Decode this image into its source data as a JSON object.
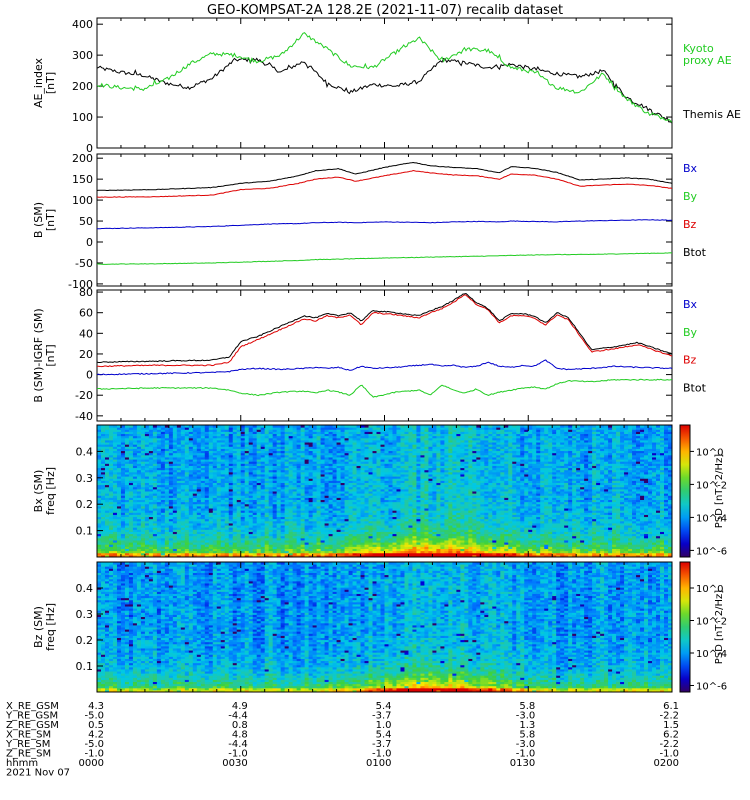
{
  "title": "GEO-KOMPSAT-2A 128.2E (2021-11-07) recalib dataset",
  "colors": {
    "black": "#000000",
    "red": "#dd0000",
    "blue": "#0000cc",
    "green": "#22cc22"
  },
  "chart_data": [
    {
      "id": "ae",
      "type": "line",
      "ylabel": [
        "AE_index",
        "[nT]"
      ],
      "ylim": [
        0,
        420
      ],
      "yticks": [
        0,
        100,
        200,
        300,
        400
      ],
      "x": [
        0.0,
        0.04,
        0.08,
        0.12,
        0.16,
        0.2,
        0.24,
        0.28,
        0.32,
        0.36,
        0.4,
        0.44,
        0.48,
        0.52,
        0.56,
        0.6,
        0.64,
        0.68,
        0.72,
        0.76,
        0.8,
        0.84,
        0.88,
        0.92,
        0.96,
        1.0
      ],
      "series": [
        {
          "name": "Themis AE",
          "color": "#000000",
          "values": [
            260,
            245,
            235,
            210,
            195,
            225,
            285,
            285,
            245,
            280,
            210,
            180,
            205,
            200,
            215,
            285,
            275,
            260,
            270,
            255,
            240,
            230,
            250,
            165,
            125,
            85
          ]
        },
        {
          "name": "Kyoto proxy AE",
          "color": "#22cc22",
          "values": [
            205,
            195,
            190,
            220,
            270,
            305,
            300,
            280,
            300,
            370,
            320,
            265,
            260,
            310,
            355,
            280,
            320,
            315,
            260,
            245,
            195,
            180,
            240,
            160,
            110,
            90
          ]
        }
      ],
      "legend_lines": [
        {
          "text": "Kyoto",
          "color": "#22cc22"
        },
        {
          "text": "proxy AE",
          "color": "#22cc22"
        },
        {
          "text": "Themis AE",
          "color": "#000000"
        }
      ]
    },
    {
      "id": "b_sm",
      "type": "line",
      "ylabel": [
        "B (SM)",
        "[nT]"
      ],
      "ylim": [
        -105,
        210
      ],
      "yticks": [
        -100,
        -50,
        0,
        50,
        100,
        150,
        200
      ],
      "x": [
        0.0,
        0.1,
        0.2,
        0.25,
        0.3,
        0.35,
        0.38,
        0.42,
        0.45,
        0.5,
        0.55,
        0.58,
        0.62,
        0.66,
        0.7,
        0.72,
        0.76,
        0.8,
        0.84,
        0.88,
        0.92,
        0.96,
        1.0
      ],
      "series": [
        {
          "name": "Bx",
          "color": "#0000cc",
          "values": [
            32,
            34,
            37,
            40,
            43,
            44,
            46,
            47,
            46,
            48,
            47,
            46,
            48,
            49,
            48,
            50,
            49,
            48,
            50,
            51,
            52,
            53,
            52
          ]
        },
        {
          "name": "By",
          "color": "#22cc22",
          "values": [
            -53,
            -52,
            -50,
            -48,
            -46,
            -44,
            -42,
            -41,
            -40,
            -38,
            -37,
            -36,
            -35,
            -34,
            -33,
            -32,
            -31,
            -30,
            -30,
            -29,
            -28,
            -27,
            -26
          ]
        },
        {
          "name": "Bz",
          "color": "#dd0000",
          "values": [
            107,
            108,
            112,
            125,
            128,
            140,
            150,
            155,
            145,
            158,
            170,
            165,
            160,
            158,
            150,
            162,
            160,
            150,
            133,
            136,
            138,
            135,
            128
          ]
        },
        {
          "name": "Btot",
          "color": "#000000",
          "values": [
            123,
            125,
            130,
            140,
            145,
            158,
            170,
            175,
            162,
            178,
            190,
            182,
            178,
            175,
            165,
            180,
            176,
            166,
            148,
            150,
            153,
            150,
            140
          ]
        }
      ],
      "legend_lines": [
        {
          "text": "Bx",
          "color": "#0000cc"
        },
        {
          "text": "By",
          "color": "#22cc22"
        },
        {
          "text": "Bz",
          "color": "#dd0000"
        },
        {
          "text": "Btot",
          "color": "#000000"
        }
      ]
    },
    {
      "id": "db_sm",
      "type": "line",
      "ylabel": [
        "B (SM)-IGRF (SM)",
        "[nT]"
      ],
      "ylim": [
        -45,
        82
      ],
      "yticks": [
        -40,
        -20,
        0,
        20,
        40,
        60,
        80
      ],
      "x": [
        0.0,
        0.1,
        0.2,
        0.23,
        0.25,
        0.28,
        0.32,
        0.36,
        0.38,
        0.4,
        0.42,
        0.44,
        0.46,
        0.48,
        0.52,
        0.56,
        0.58,
        0.6,
        0.62,
        0.64,
        0.66,
        0.68,
        0.7,
        0.72,
        0.74,
        0.76,
        0.78,
        0.8,
        0.82,
        0.86,
        0.9,
        0.94,
        1.0
      ],
      "series": [
        {
          "name": "Bx",
          "color": "#0000cc",
          "values": [
            0,
            1,
            2,
            3,
            5,
            6,
            5,
            6,
            7,
            6,
            7,
            4,
            8,
            6,
            7,
            9,
            10,
            8,
            9,
            7,
            8,
            12,
            8,
            7,
            9,
            8,
            14,
            6,
            5,
            6,
            8,
            7,
            6
          ]
        },
        {
          "name": "By",
          "color": "#22cc22",
          "values": [
            -14,
            -13,
            -13,
            -15,
            -18,
            -20,
            -17,
            -16,
            -18,
            -15,
            -17,
            -20,
            -10,
            -22,
            -17,
            -15,
            -20,
            -10,
            -15,
            -18,
            -14,
            -20,
            -17,
            -15,
            -13,
            -12,
            -14,
            -9,
            -6,
            -7,
            -5,
            -5,
            -5
          ]
        },
        {
          "name": "Bz",
          "color": "#dd0000",
          "values": [
            8,
            9,
            9,
            12,
            27,
            34,
            44,
            54,
            52,
            57,
            55,
            58,
            48,
            60,
            58,
            55,
            60,
            64,
            70,
            78,
            68,
            63,
            50,
            57,
            57,
            55,
            48,
            58,
            53,
            22,
            25,
            29,
            18
          ]
        },
        {
          "name": "Btot",
          "color": "#000000",
          "values": [
            12,
            13,
            14,
            17,
            32,
            37,
            47,
            57,
            55,
            59,
            57,
            60,
            52,
            62,
            60,
            57,
            62,
            66,
            72,
            79,
            70,
            64,
            52,
            59,
            59,
            57,
            50,
            60,
            55,
            24,
            27,
            31,
            20
          ]
        }
      ],
      "legend_lines": [
        {
          "text": "Bx",
          "color": "#0000cc"
        },
        {
          "text": "By",
          "color": "#22cc22"
        },
        {
          "text": "Bz",
          "color": "#dd0000"
        },
        {
          "text": "Btot",
          "color": "#000000"
        }
      ]
    },
    {
      "id": "spec_bx",
      "type": "heatmap",
      "ylabel": [
        "Bx (SM)",
        "freq [Hz]"
      ],
      "ylim": [
        0,
        0.5
      ],
      "yticks": [
        0.1,
        0.2,
        0.3,
        0.4
      ],
      "colorbar": {
        "label": "PSD [nT^2/Hz]",
        "ticks": [
          {
            "label": "10^0",
            "pos": 0.2
          },
          {
            "label": "10^-2",
            "pos": 0.45
          },
          {
            "label": "10^-4",
            "pos": 0.7
          },
          {
            "label": "10^-6",
            "pos": 0.95
          }
        ]
      }
    },
    {
      "id": "spec_bz",
      "type": "heatmap",
      "ylabel": [
        "Bz (SM)",
        "freq [Hz]"
      ],
      "ylim": [
        0,
        0.5
      ],
      "yticks": [
        0.1,
        0.2,
        0.3,
        0.4
      ],
      "colorbar": {
        "label": "PSD [nT^2/Hz]",
        "ticks": [
          {
            "label": "10^0",
            "pos": 0.2
          },
          {
            "label": "10^-2",
            "pos": 0.45
          },
          {
            "label": "10^-4",
            "pos": 0.7
          },
          {
            "label": "10^-6",
            "pos": 0.95
          }
        ]
      }
    }
  ],
  "ephemeris": {
    "row_labels": [
      "X_RE_GSM",
      "Y_RE_GSM",
      "Z_RE_GSM",
      "X_RE_SM",
      "Y_RE_SM",
      "Z_RE_SM",
      "hhmm"
    ],
    "columns": [
      [
        "4.3",
        "-5.0",
        "0.5",
        "4.2",
        "-5.0",
        "-1.0",
        "0000"
      ],
      [
        "4.9",
        "-4.4",
        "0.8",
        "4.8",
        "-4.4",
        "-1.0",
        "0030"
      ],
      [
        "5.4",
        "-3.7",
        "1.0",
        "5.4",
        "-3.7",
        "-1.0",
        "0100"
      ],
      [
        "5.8",
        "-3.0",
        "1.3",
        "5.8",
        "-3.0",
        "-1.0",
        "0130"
      ],
      [
        "6.1",
        "-2.2",
        "1.5",
        "6.2",
        "-2.2",
        "-1.0",
        "0200"
      ]
    ],
    "date": "2021 Nov 07"
  }
}
